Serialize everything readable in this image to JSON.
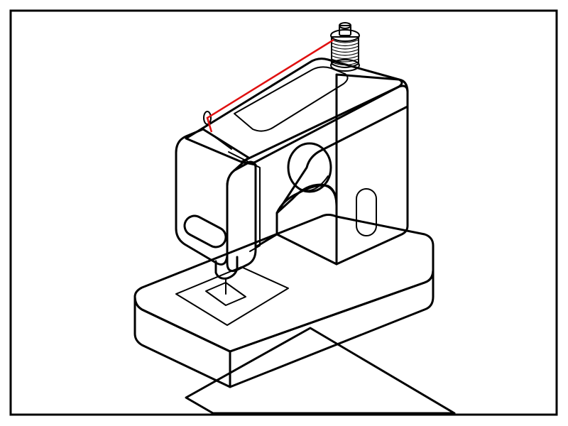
{
  "illustration": {
    "subject_icon": "sewing-machine-icon",
    "colors": {
      "outline": "#000000",
      "background": "#ffffff",
      "body_fill": "#ffffff",
      "panel_fill": "#e3e3e3",
      "thread": "#e01010",
      "spool": "#e01010"
    }
  }
}
